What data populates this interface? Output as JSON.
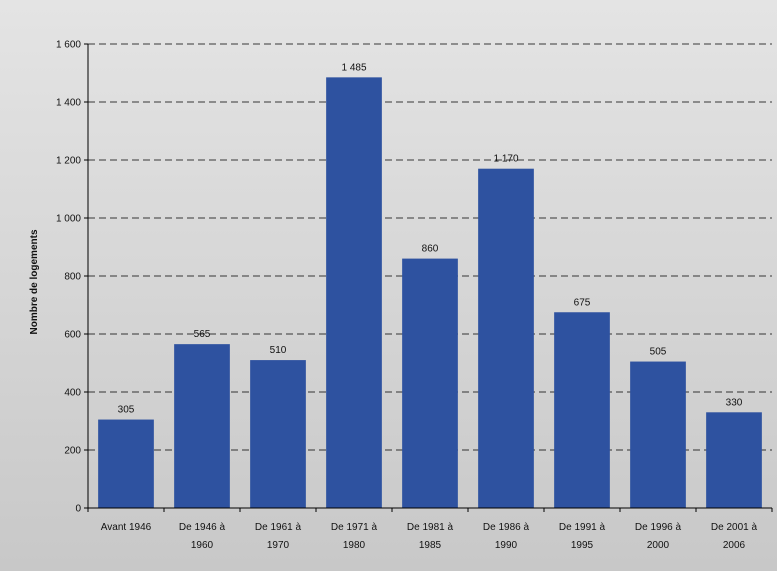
{
  "chart_data": {
    "type": "bar",
    "title": "",
    "xlabel": "",
    "ylabel": "Nombre de logements",
    "ylim": [
      0,
      1600
    ],
    "yticks": [
      0,
      200,
      400,
      600,
      800,
      1000,
      1200,
      1400,
      1600
    ],
    "ytick_labels": [
      "0",
      "200",
      "400",
      "600",
      "800",
      "1 000",
      "1 200",
      "1 400",
      "1 600"
    ],
    "grid": "horizontal-dashed",
    "categories": [
      [
        "Avant 1946"
      ],
      [
        "De 1946 à",
        "1960"
      ],
      [
        "De 1961 à",
        "1970"
      ],
      [
        "De 1971 à",
        "1980"
      ],
      [
        "De 1981 à",
        "1985"
      ],
      [
        "De 1986 à",
        "1990"
      ],
      [
        "De 1991 à",
        "1995"
      ],
      [
        "De 1996 à",
        "2000"
      ],
      [
        "De 2001 à",
        "2006"
      ]
    ],
    "values": [
      305,
      565,
      510,
      1485,
      860,
      1170,
      675,
      505,
      330
    ],
    "value_labels": [
      "305",
      "565",
      "510",
      "1 485",
      "860",
      "1 170",
      "675",
      "505",
      "330"
    ]
  },
  "colors": {
    "bar": "#2E52A0",
    "background_top": "#E4E4E4",
    "background_bottom": "#C8C8C8",
    "grid": "#000000"
  }
}
